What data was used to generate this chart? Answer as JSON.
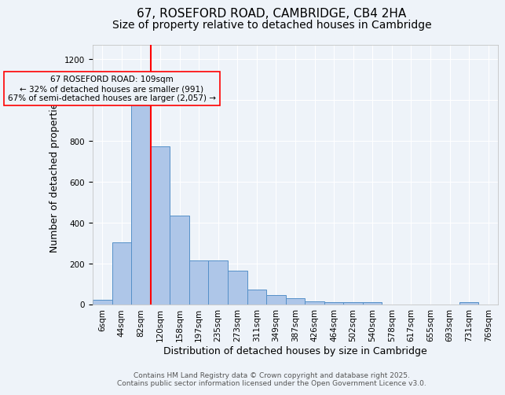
{
  "title_line1": "67, ROSEFORD ROAD, CAMBRIDGE, CB4 2HA",
  "title_line2": "Size of property relative to detached houses in Cambridge",
  "xlabel": "Distribution of detached houses by size in Cambridge",
  "ylabel": "Number of detached properties",
  "categories": [
    "6sqm",
    "44sqm",
    "82sqm",
    "120sqm",
    "158sqm",
    "197sqm",
    "235sqm",
    "273sqm",
    "311sqm",
    "349sqm",
    "387sqm",
    "426sqm",
    "464sqm",
    "502sqm",
    "540sqm",
    "578sqm",
    "617sqm",
    "655sqm",
    "693sqm",
    "731sqm",
    "769sqm"
  ],
  "values": [
    25,
    305,
    990,
    775,
    435,
    215,
    215,
    165,
    75,
    45,
    30,
    15,
    10,
    10,
    10,
    0,
    0,
    0,
    0,
    10,
    0
  ],
  "bar_color": "#aec6e8",
  "bar_edge_color": "#5590c8",
  "vline_color": "red",
  "annotation_text": "67 ROSEFORD ROAD: 109sqm\n← 32% of detached houses are smaller (991)\n67% of semi-detached houses are larger (2,057) →",
  "ylim": [
    0,
    1270
  ],
  "yticks": [
    0,
    200,
    400,
    600,
    800,
    1000,
    1200
  ],
  "footer_line1": "Contains HM Land Registry data © Crown copyright and database right 2025.",
  "footer_line2": "Contains public sector information licensed under the Open Government Licence v3.0.",
  "bg_color": "#eef3f9",
  "grid_color": "white",
  "title_fontsize": 11,
  "subtitle_fontsize": 10,
  "axis_label_fontsize": 9,
  "tick_fontsize": 7.5,
  "footer_fontsize": 6.5
}
